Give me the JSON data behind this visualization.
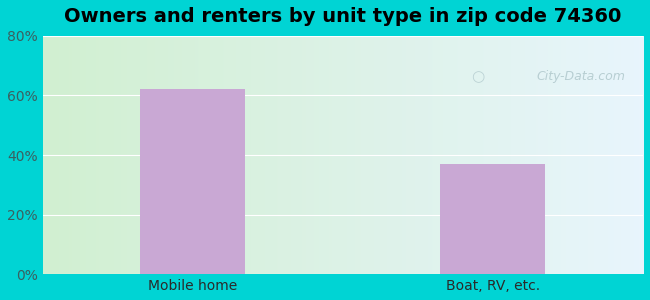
{
  "title": "Owners and renters by unit type in zip code 74360",
  "categories": [
    "Mobile home",
    "Boat, RV, etc."
  ],
  "values": [
    62,
    37
  ],
  "bar_color": "#c9a8d4",
  "bar_width": 0.35,
  "ylim": [
    0,
    80
  ],
  "yticks": [
    0,
    20,
    40,
    60,
    80
  ],
  "ytick_labels": [
    "0%",
    "20%",
    "40%",
    "60%",
    "80%"
  ],
  "background_outer": "#00d4d4",
  "title_fontsize": 14,
  "tick_fontsize": 10,
  "watermark": "City-Data.com"
}
